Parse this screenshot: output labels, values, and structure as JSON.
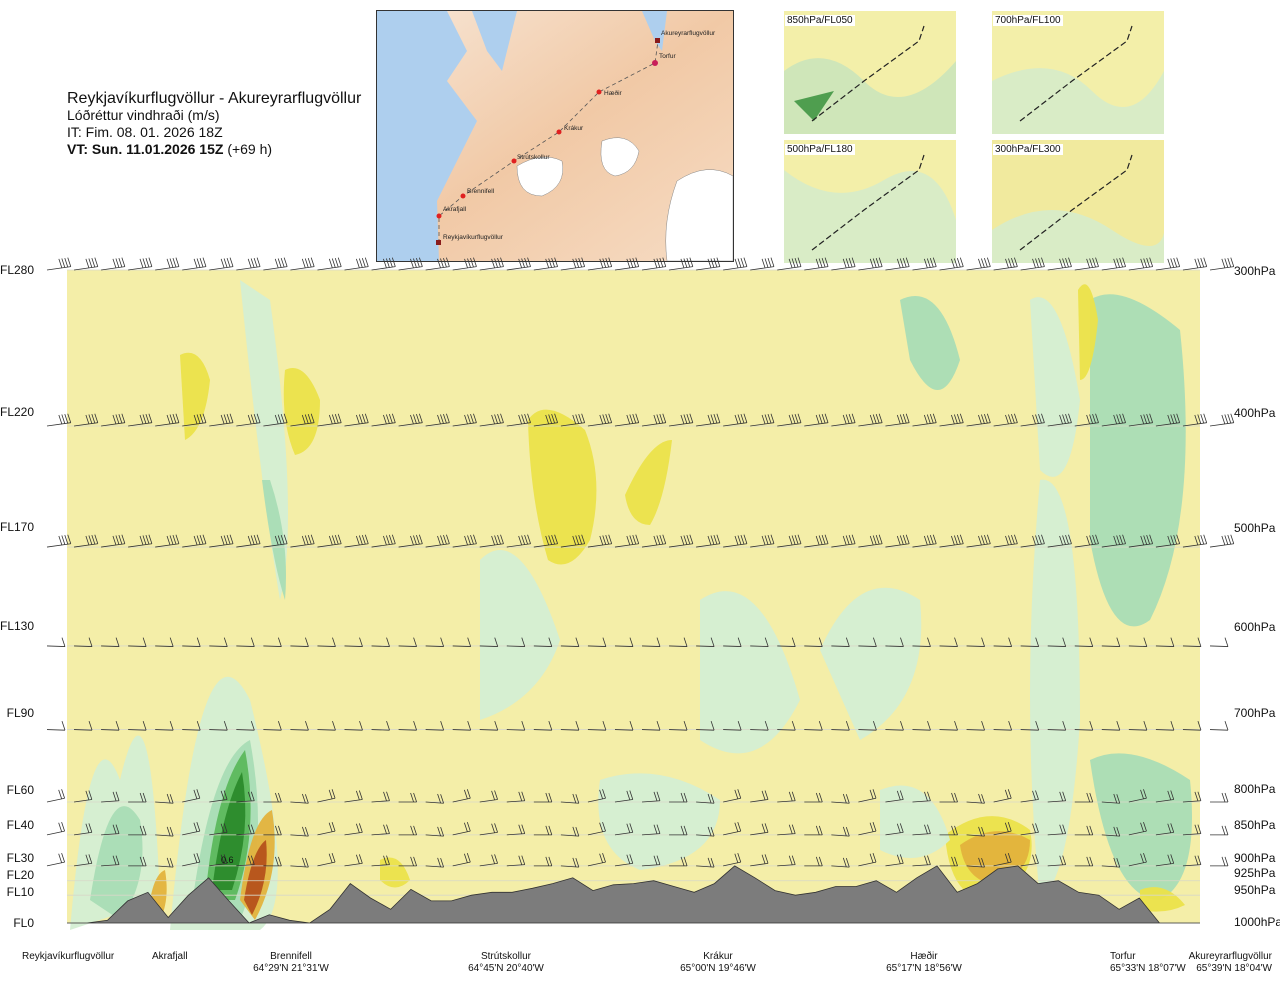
{
  "header": {
    "route": "Reykjavíkurflugvöllur - Akureyrarflugvöllur",
    "variable": "Lóðréttur vindhraði (m/s)",
    "issue_time": "IT: Fim. 08. 01. 2026 18Z",
    "valid_time": "VT: Sun. 11.01.2026 15Z",
    "lead_time": "(+69 h)"
  },
  "map": {
    "waypoints": [
      "Akureyrarflugvöllur",
      "Torfur",
      "Hæðir",
      "Krákur",
      "Strútskollur",
      "Brennifell",
      "Akrafjall",
      "Reykjavíkurflugvöllur"
    ]
  },
  "thumbnails": [
    {
      "label": "850hPa/FL050"
    },
    {
      "label": "700hPa/FL100"
    },
    {
      "label": "500hPa/FL180"
    },
    {
      "label": "300hPa/FL300"
    }
  ],
  "chart_data": {
    "type": "heatmap",
    "title": "Lóðréttur vindhraði (m/s)",
    "xlabel": "",
    "ylabel": "",
    "levels_left": [
      "FL280",
      "FL220",
      "FL170",
      "FL130",
      "FL90",
      "FL60",
      "FL40",
      "FL30",
      "FL20",
      "FL10",
      "FL0"
    ],
    "levels_right": [
      "300hPa",
      "400hPa",
      "500hPa",
      "600hPa",
      "700hPa",
      "800hPa",
      "850hPa",
      "900hPa",
      "925hPa",
      "950hPa",
      "1000hPa"
    ],
    "pressure_hpa": [
      300,
      400,
      500,
      600,
      700,
      800,
      850,
      900,
      925,
      950,
      1000
    ],
    "annotation": "0.6",
    "locations": [
      {
        "name": "Reykjavíkurflugvöllur",
        "coords": ""
      },
      {
        "name": "Akrafjall",
        "coords": ""
      },
      {
        "name": "Brennifell",
        "coords": "64°29'N 21°31'W"
      },
      {
        "name": "Strútskollur",
        "coords": "64°45'N 20°40'W"
      },
      {
        "name": "Krákur",
        "coords": "65°00'N 19°46'W"
      },
      {
        "name": "Hæðir",
        "coords": "65°17'N 18°56'W"
      },
      {
        "name": "Torfur",
        "coords": "65°33'N 18°07'W"
      },
      {
        "name": "Akureyrarflugvöllur",
        "coords": "65°39'N 18°04'W"
      }
    ],
    "terrain_profile_hpa": [
      1000,
      1000,
      995,
      960,
      945,
      990,
      950,
      920,
      960,
      1000,
      985,
      995,
      1000,
      975,
      930,
      955,
      975,
      940,
      960,
      960,
      950,
      945,
      945,
      938,
      930,
      920,
      942,
      932,
      930,
      925,
      935,
      945,
      930,
      900,
      920,
      942,
      950,
      945,
      935,
      935,
      925,
      945,
      920,
      900,
      945,
      930,
      905,
      900,
      930,
      925,
      945,
      950,
      975,
      955,
      1000,
      1000,
      1000
    ],
    "colors": {
      "updraft_strong": "#2b8a2b",
      "updraft_moderate": "#5cb85c",
      "updraft_weak": "#a9dcb5",
      "updraft_faint": "#d4eed3",
      "neutral": "#fafad2",
      "downdraft_faint": "#f6eeaa",
      "downdraft_weak": "#ebe24a",
      "downdraft_moderate": "#e3b23c",
      "downdraft_strong": "#b5521b",
      "terrain": "#7c7c7c"
    }
  }
}
